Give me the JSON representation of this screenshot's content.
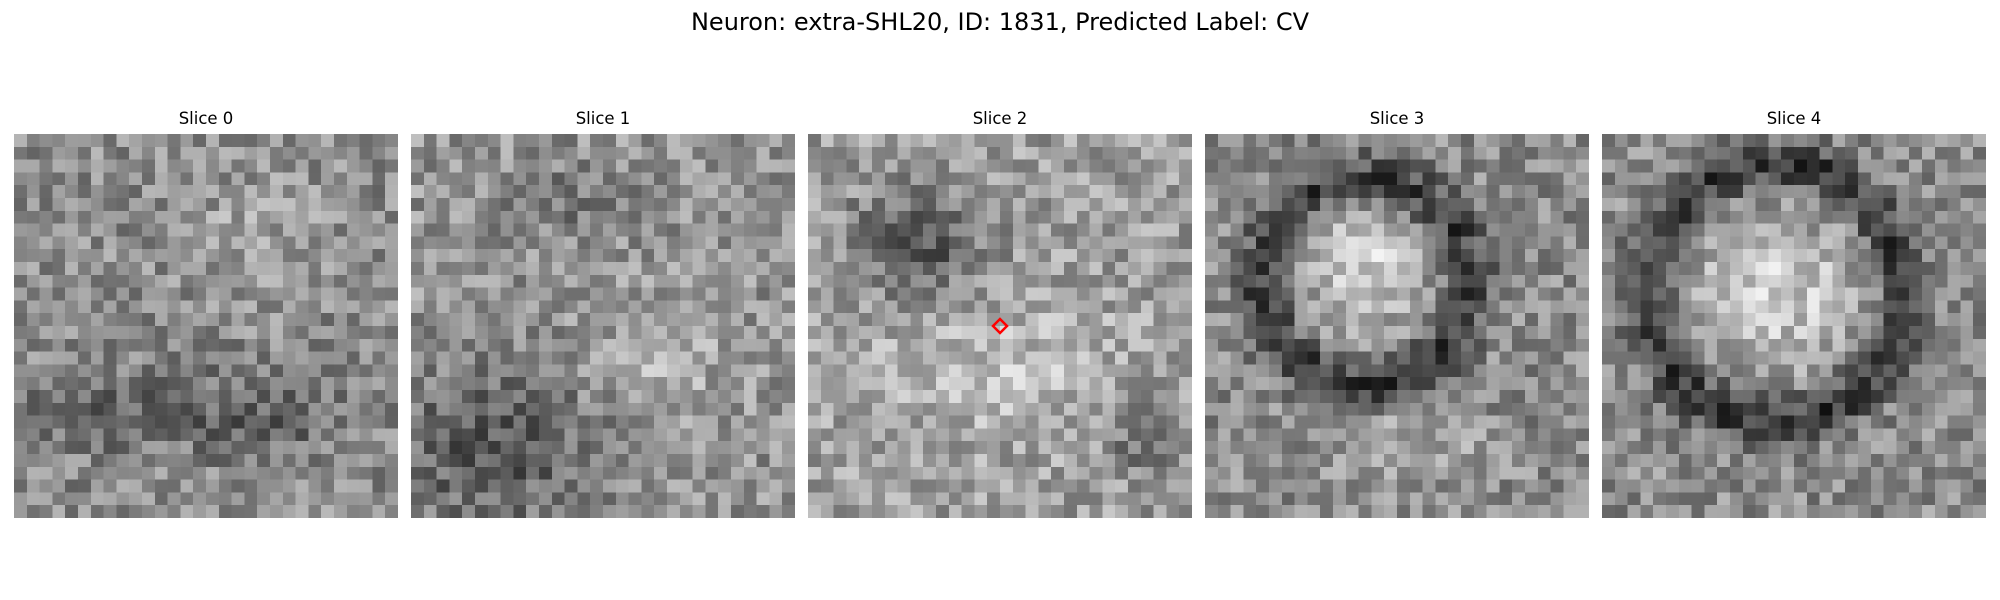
{
  "figure": {
    "title": "Neuron: extra-SHL20, ID: 1831, Predicted Label: CV"
  },
  "panels": [
    {
      "title": "Slice 0",
      "pattern": "noise-dark-lower-band"
    },
    {
      "title": "Slice 1",
      "pattern": "noise-dark-lower-left"
    },
    {
      "title": "Slice 2",
      "pattern": "dark-upper-blob-bright-center",
      "marker": true
    },
    {
      "title": "Slice 3",
      "pattern": "dark-ring-bright-core"
    },
    {
      "title": "Slice 4",
      "pattern": "dark-ring-bright-core-large"
    }
  ],
  "colors": {
    "marker": "#ff0000",
    "colormap": "gray"
  }
}
